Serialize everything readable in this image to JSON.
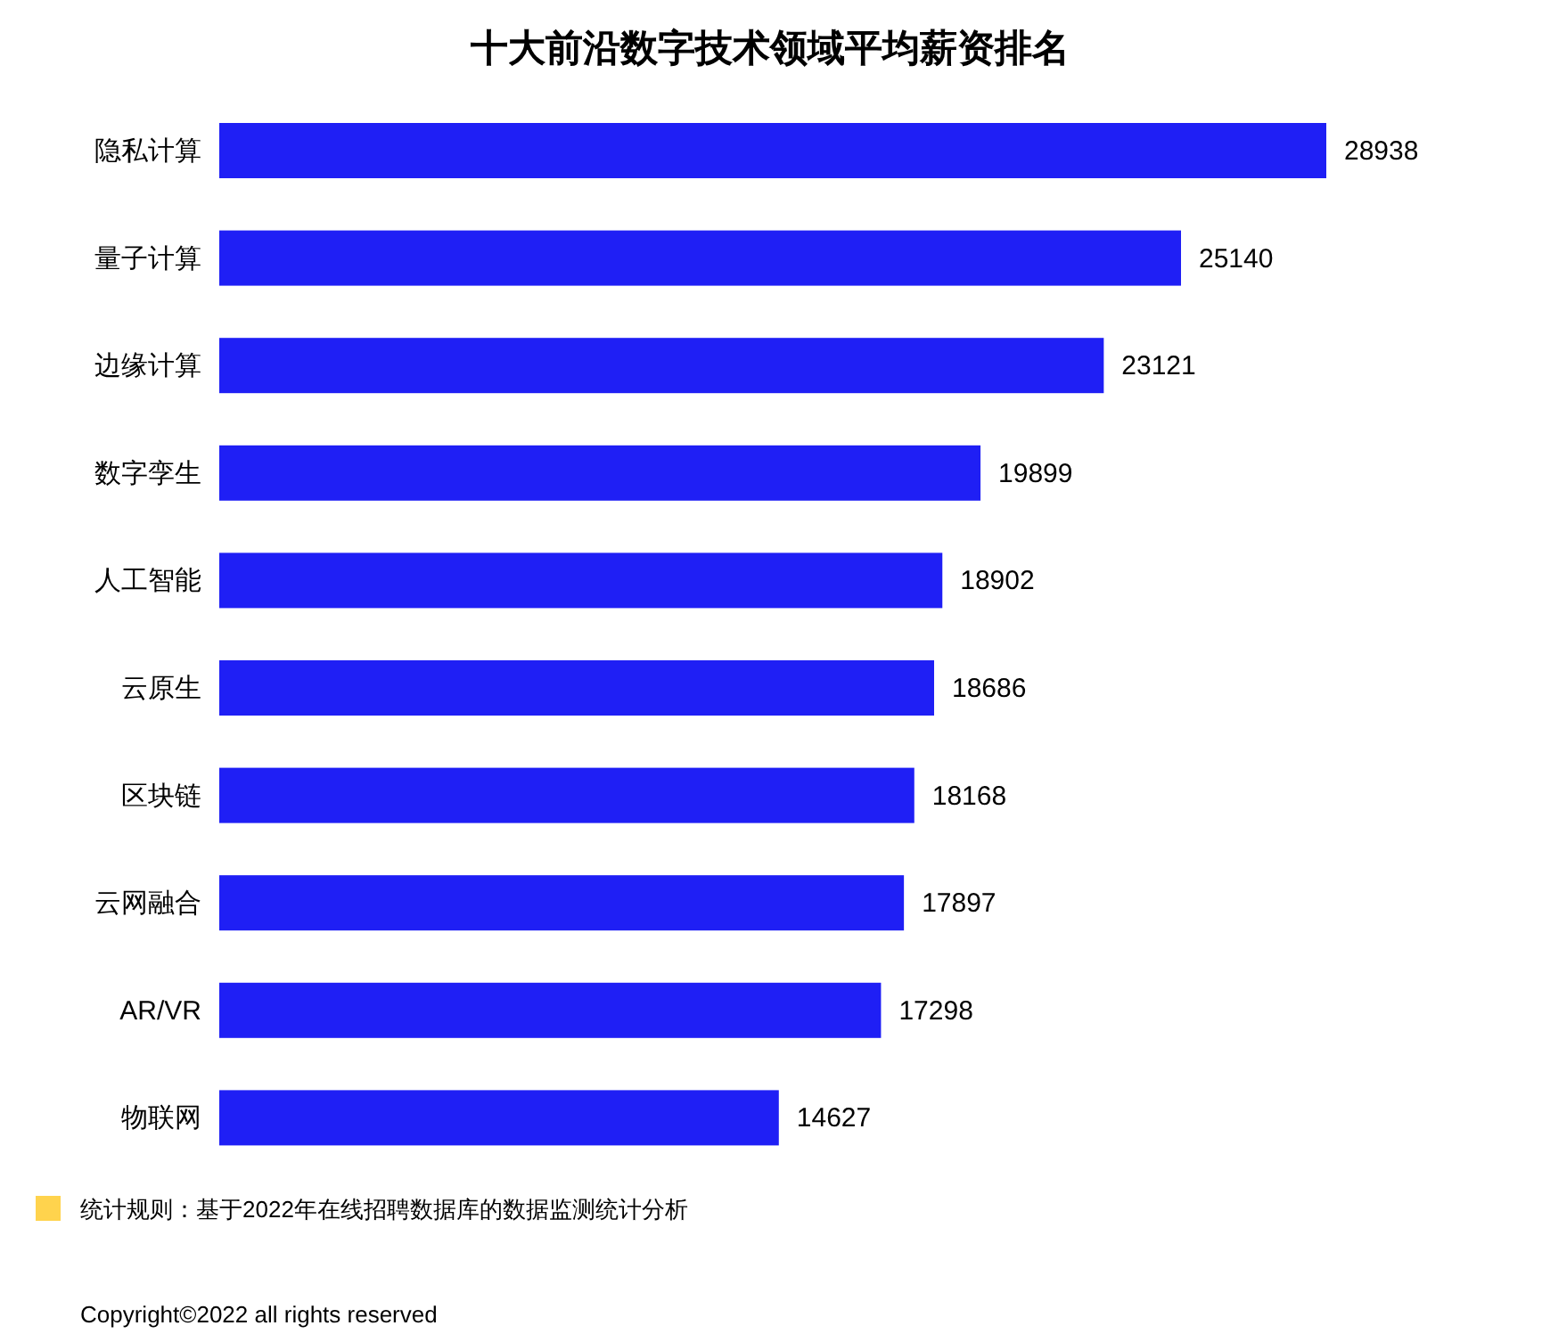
{
  "chart_data": {
    "type": "bar",
    "orientation": "horizontal",
    "title": "十大前沿数字技术领域平均薪资排名",
    "categories": [
      "隐私计算",
      "量子计算",
      "边缘计算",
      "数字孪生",
      "人工智能",
      "云原生",
      "区块链",
      "云网融合",
      "AR/VR",
      "物联网"
    ],
    "values": [
      28938,
      25140,
      23121,
      19899,
      18902,
      18686,
      18168,
      17897,
      17298,
      14627
    ],
    "color": "#1f1ff5",
    "data_labels": true,
    "annotations": [
      "统计规则：基于2022年在线招聘数据库的数据监测统计分析",
      "Copyright©2022 all rights reserved"
    ]
  }
}
